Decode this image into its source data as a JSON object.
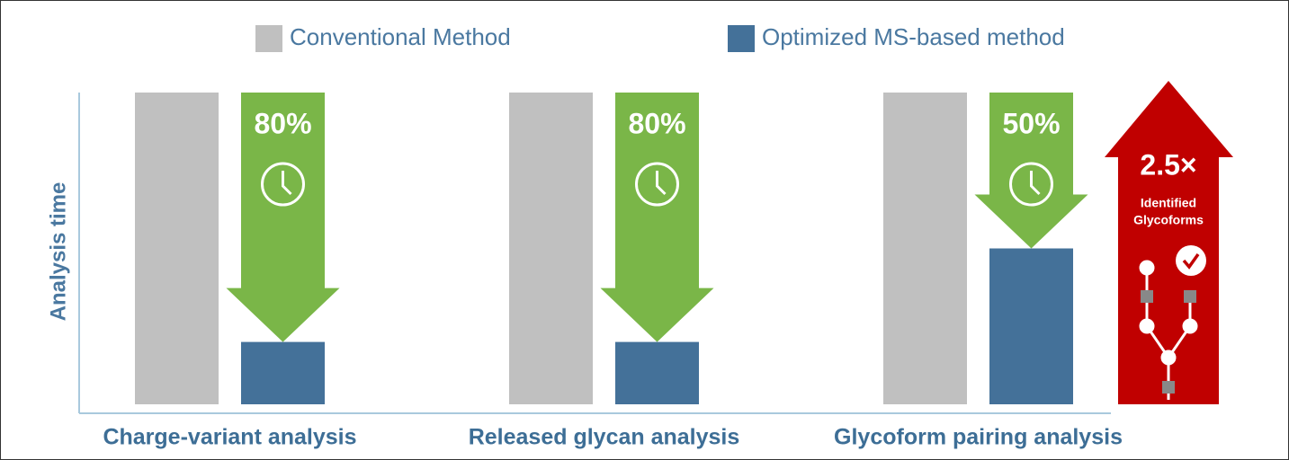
{
  "chart_data": {
    "type": "bar",
    "y_label": "Analysis time",
    "categories": [
      "Charge-variant analysis",
      "Released glycan analysis",
      "Glycoform pairing analysis"
    ],
    "series": [
      {
        "name": "Conventional Method",
        "color": "#c0c0c0",
        "values": [
          100,
          100,
          100
        ]
      },
      {
        "name": "Optimized MS-based method",
        "color": "#447199",
        "values": [
          20,
          20,
          50
        ]
      }
    ],
    "reductions": {
      "color": "#7ab648",
      "values": [
        80,
        80,
        50
      ],
      "value_labels": [
        "80%",
        "80%",
        "50%"
      ]
    },
    "callout": {
      "color": "#c00000",
      "value": 2.5,
      "value_label": "2.5×",
      "text": [
        "Identified",
        "Glycoforms"
      ]
    },
    "ylim": [
      0,
      100
    ]
  }
}
